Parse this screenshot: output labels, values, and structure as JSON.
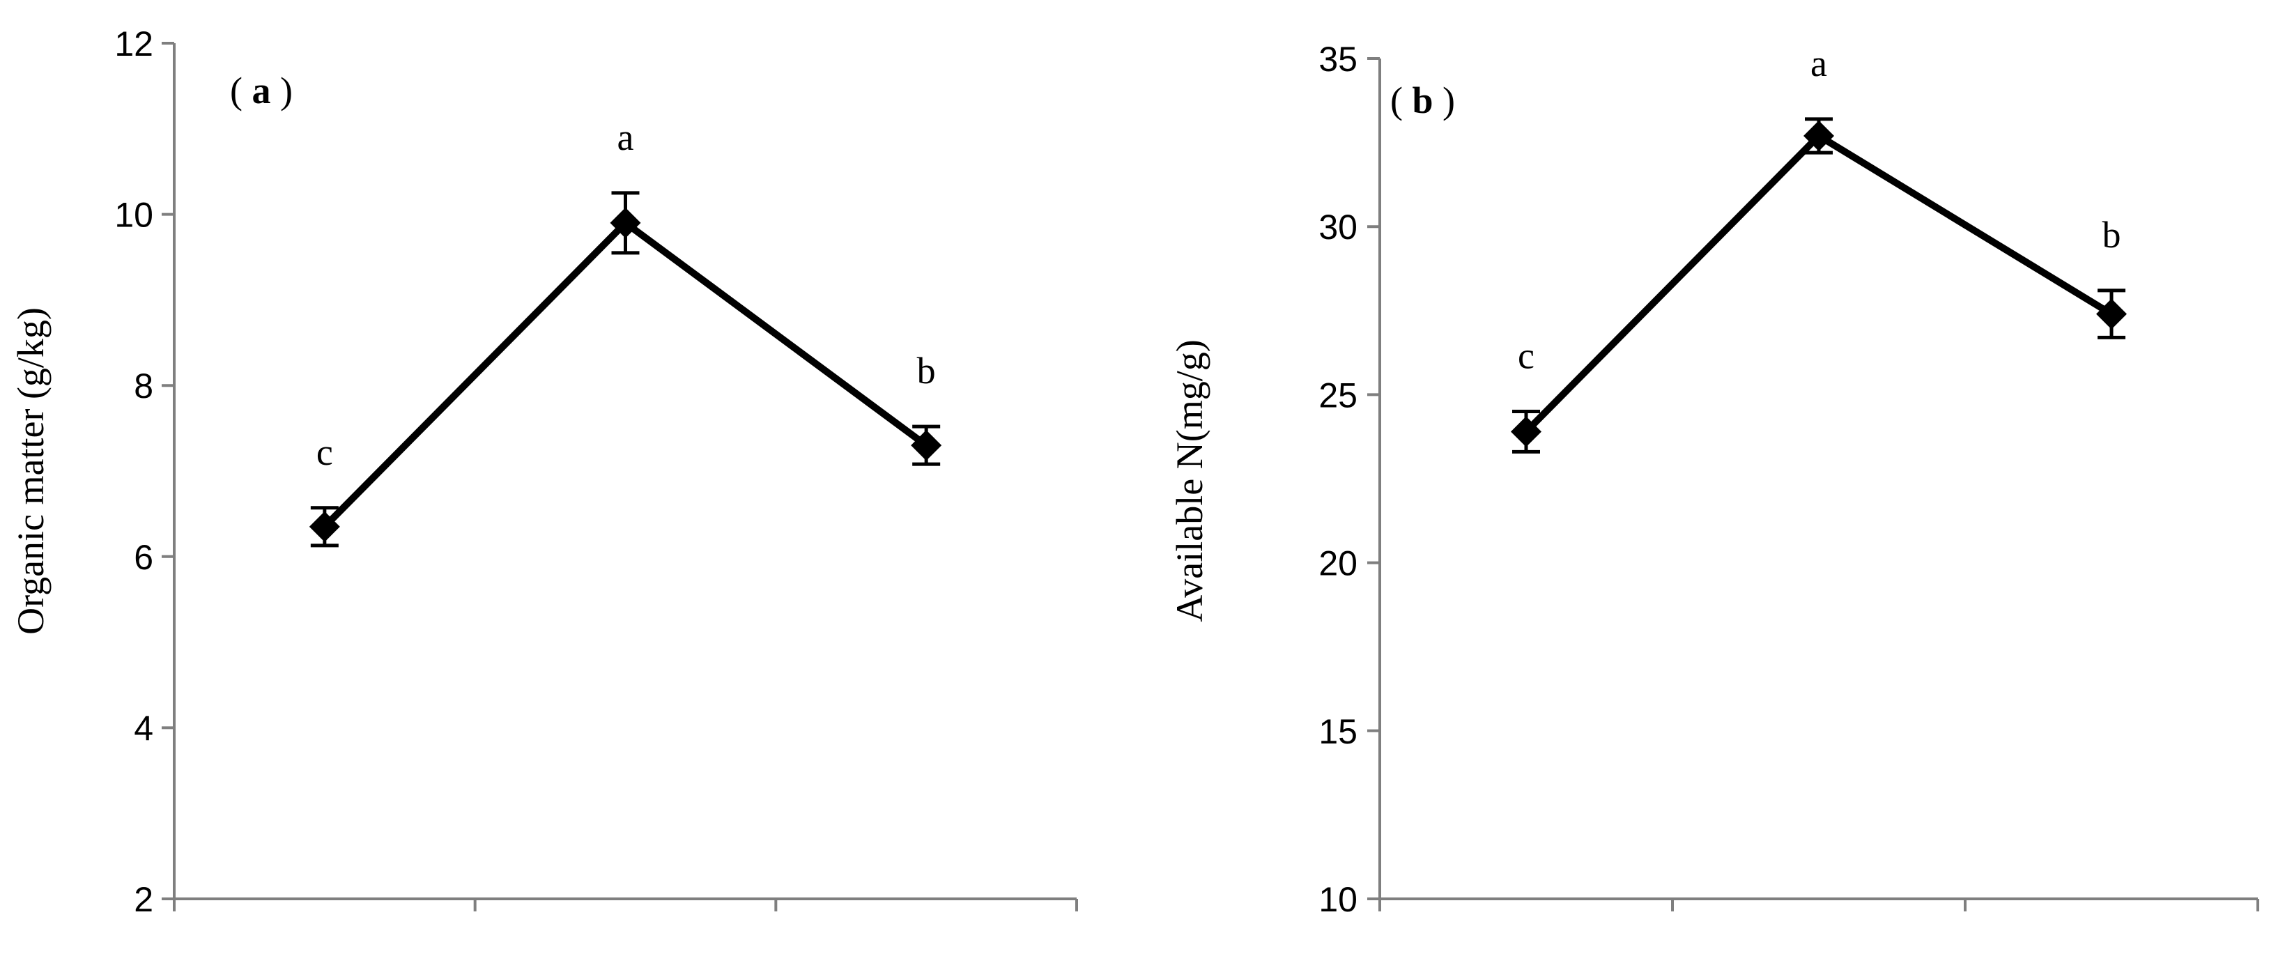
{
  "chart_data": [
    {
      "type": "line",
      "panel_label": {
        "open": "( ",
        "letter": "a",
        "close": " )"
      },
      "ylabel": "Organic matter (g/kg)",
      "xlabel": "",
      "ylim": [
        2,
        12
      ],
      "yticks": [
        2,
        4,
        6,
        8,
        10,
        12
      ],
      "n_categories": 3,
      "categories": [
        "",
        "",
        ""
      ],
      "grid": false,
      "series": [
        {
          "values": [
            6.35,
            9.9,
            7.3
          ],
          "errors": [
            0.22,
            0.35,
            0.22
          ],
          "significance": [
            "c",
            "a",
            "b"
          ]
        }
      ]
    },
    {
      "type": "line",
      "panel_label": {
        "open": "( ",
        "letter": "b",
        "close": " )"
      },
      "ylabel": "Available N(mg/g)",
      "xlabel": "",
      "ylim": [
        10,
        35
      ],
      "yticks": [
        10,
        15,
        20,
        25,
        30,
        35
      ],
      "n_categories": 3,
      "categories": [
        "",
        "",
        ""
      ],
      "grid": false,
      "series": [
        {
          "values": [
            23.9,
            32.7,
            27.4
          ],
          "errors": [
            0.6,
            0.5,
            0.7
          ],
          "significance": [
            "c",
            "a",
            "b"
          ]
        }
      ]
    }
  ]
}
